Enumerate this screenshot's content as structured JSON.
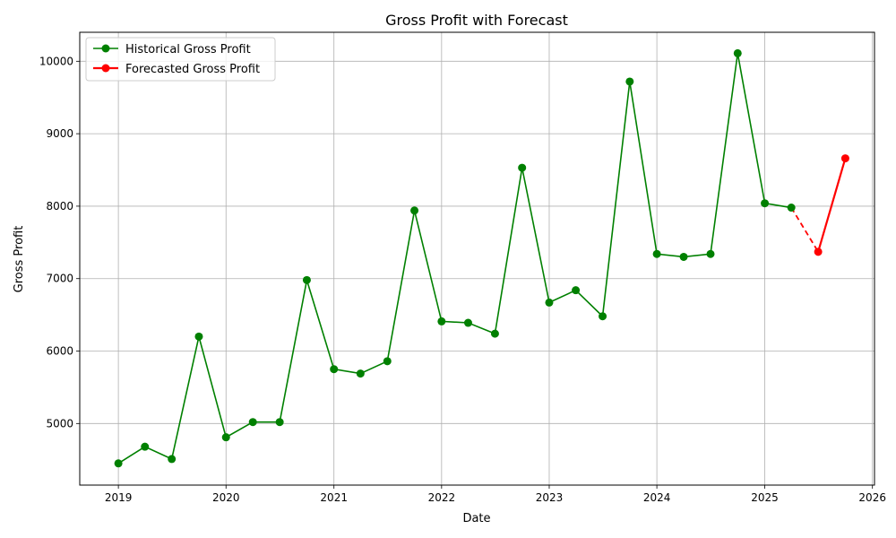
{
  "chart_data": {
    "type": "line",
    "title": "Gross Profit with Forecast",
    "xlabel": "Date",
    "ylabel": "Gross Profit",
    "grid": true,
    "legend_position": "top-left",
    "x_ticks": [
      "2019",
      "2020",
      "2021",
      "2022",
      "2023",
      "2024",
      "2025",
      "2026"
    ],
    "y_ticks": [
      5000,
      6000,
      7000,
      8000,
      9000,
      10000
    ],
    "xlim": [
      "2018-08-23",
      "2026-01-08"
    ],
    "ylim": [
      4150,
      10400
    ],
    "series": [
      {
        "name": "Historical Gross Profit",
        "color": "#008000",
        "linestyle": "solid",
        "marker": "circle",
        "points": [
          {
            "x": "2019-01-01",
            "y": 4450
          },
          {
            "x": "2019-04-01",
            "y": 4680
          },
          {
            "x": "2019-07-01",
            "y": 4510
          },
          {
            "x": "2019-10-01",
            "y": 6200
          },
          {
            "x": "2020-01-01",
            "y": 4810
          },
          {
            "x": "2020-04-01",
            "y": 5020
          },
          {
            "x": "2020-07-01",
            "y": 5020
          },
          {
            "x": "2020-10-01",
            "y": 6980
          },
          {
            "x": "2021-01-01",
            "y": 5750
          },
          {
            "x": "2021-04-01",
            "y": 5690
          },
          {
            "x": "2021-07-01",
            "y": 5860
          },
          {
            "x": "2021-10-01",
            "y": 7940
          },
          {
            "x": "2022-01-01",
            "y": 6410
          },
          {
            "x": "2022-04-01",
            "y": 6390
          },
          {
            "x": "2022-07-01",
            "y": 6240
          },
          {
            "x": "2022-10-01",
            "y": 8530
          },
          {
            "x": "2023-01-01",
            "y": 6670
          },
          {
            "x": "2023-04-01",
            "y": 6840
          },
          {
            "x": "2023-07-01",
            "y": 6480
          },
          {
            "x": "2023-10-01",
            "y": 9720
          },
          {
            "x": "2024-01-01",
            "y": 7340
          },
          {
            "x": "2024-04-01",
            "y": 7300
          },
          {
            "x": "2024-07-01",
            "y": 7340
          },
          {
            "x": "2024-10-01",
            "y": 10110
          },
          {
            "x": "2025-01-01",
            "y": 8040
          },
          {
            "x": "2025-04-01",
            "y": 7980
          }
        ]
      },
      {
        "name": "Forecasted Gross Profit",
        "color": "#ff0000",
        "linestyle": "solid",
        "marker": "circle",
        "points": [
          {
            "x": "2025-07-01",
            "y": 7370
          },
          {
            "x": "2025-10-01",
            "y": 8660
          }
        ]
      }
    ],
    "bridge": {
      "color": "#ff0000",
      "linestyle": "dashed",
      "points": [
        {
          "x": "2025-04-01",
          "y": 7980
        },
        {
          "x": "2025-07-01",
          "y": 7370
        }
      ]
    }
  }
}
